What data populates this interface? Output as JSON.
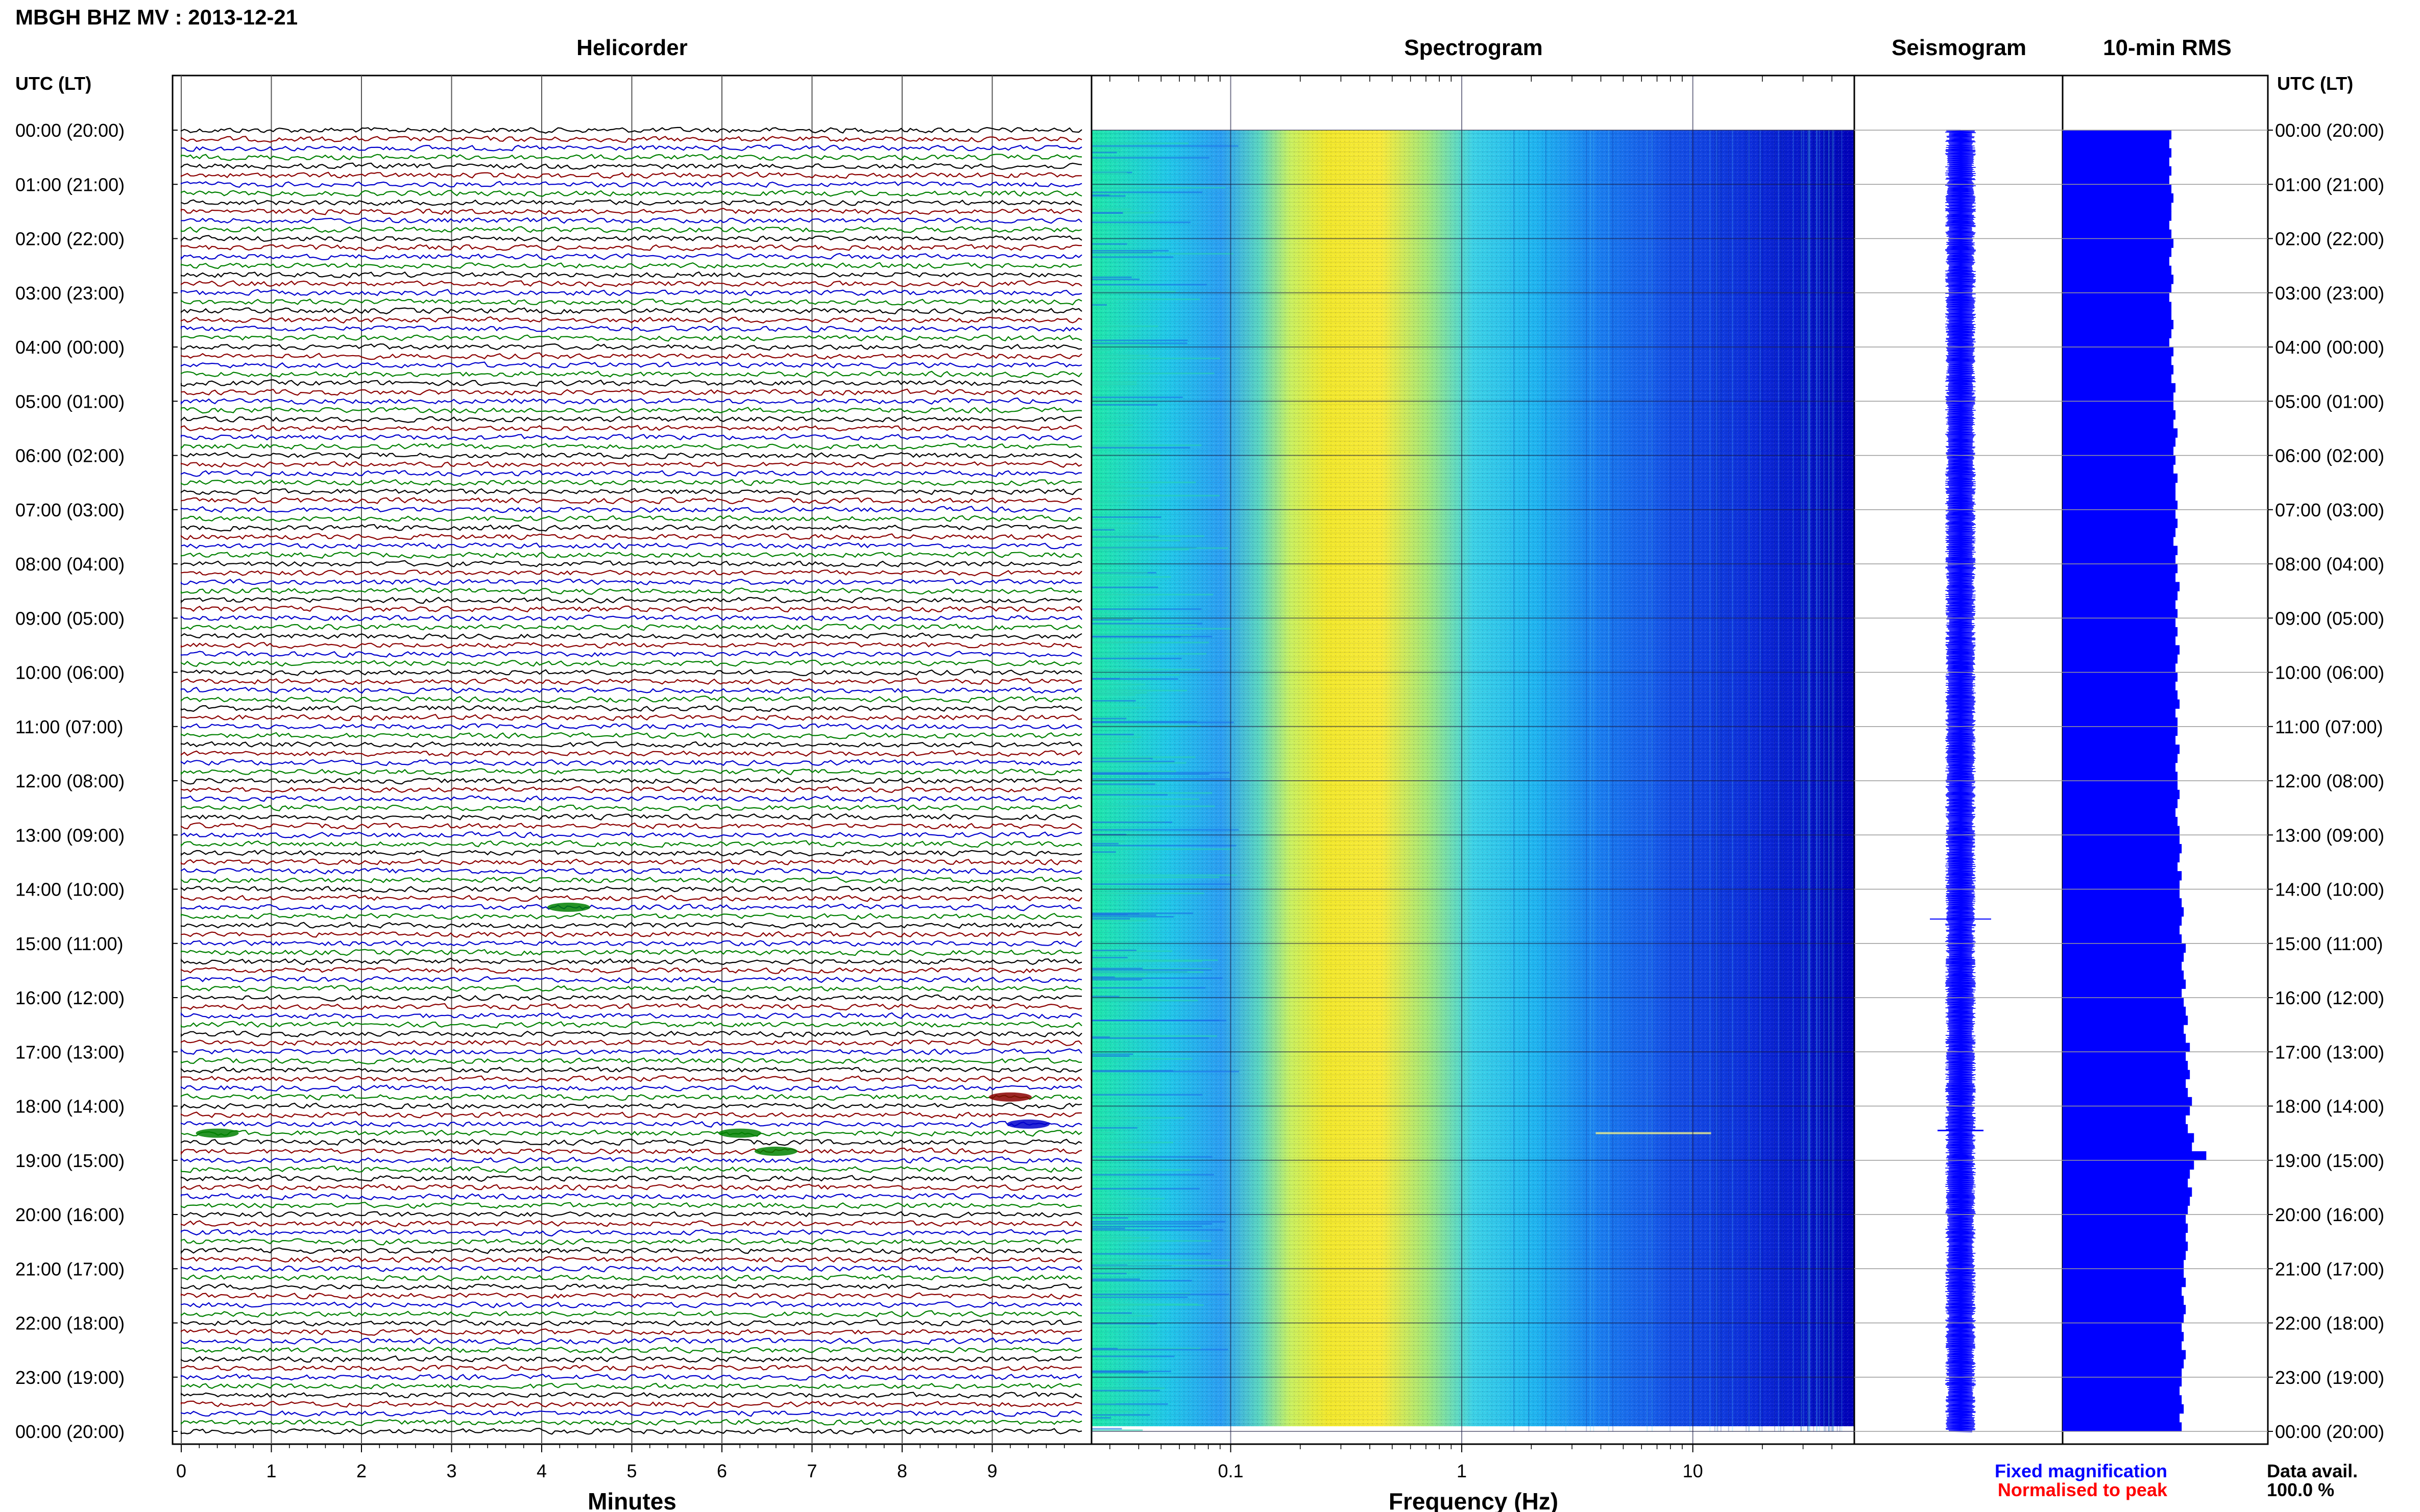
{
  "header": {
    "title": "MBGH BHZ MV : 2013-12-21",
    "utc_label_left": "UTC (LT)",
    "utc_label_right": "UTC (LT)"
  },
  "panels": {
    "helicorder": "Helicorder",
    "spectrogram": "Spectrogram",
    "seismogram": "Seismogram",
    "rms": "10-min RMS"
  },
  "axes": {
    "minutes_label": "Minutes",
    "frequency_label": "Frequency (Hz)",
    "minute_ticks": [
      "0",
      "1",
      "2",
      "3",
      "4",
      "5",
      "6",
      "7",
      "8",
      "9"
    ],
    "freq_ticks": [
      "0.1",
      "1",
      "10"
    ]
  },
  "time_labels": [
    "00:00 (20:00)",
    "01:00 (21:00)",
    "02:00 (22:00)",
    "03:00 (23:00)",
    "04:00 (00:00)",
    "05:00 (01:00)",
    "06:00 (02:00)",
    "07:00 (03:00)",
    "08:00 (04:00)",
    "09:00 (05:00)",
    "10:00 (06:00)",
    "11:00 (07:00)",
    "12:00 (08:00)",
    "13:00 (09:00)",
    "14:00 (10:00)",
    "15:00 (11:00)",
    "16:00 (12:00)",
    "17:00 (13:00)",
    "18:00 (14:00)",
    "19:00 (15:00)",
    "20:00 (16:00)",
    "21:00 (17:00)",
    "22:00 (18:00)",
    "23:00 (19:00)",
    "00:00 (20:00)"
  ],
  "legend": {
    "fixed": "Fixed magnification",
    "normalised": "Normalised to peak",
    "fixed_color": "#0000ff",
    "normalised_color": "#ff0000"
  },
  "data_availability": {
    "label": "Data avail.",
    "value": "100.0 %"
  },
  "chart_data": {
    "type": "heatmap",
    "station": "MBGH",
    "channel": "BHZ",
    "network": "MV",
    "date": "2013-12-21",
    "helicorder": {
      "x_range_minutes": [
        0,
        10
      ],
      "traces_per_hour": 6,
      "trace_colors": [
        "#000000",
        "#8b0000",
        "#0000cd",
        "#008000"
      ],
      "events": [
        {
          "time": "14:20",
          "minute": 4.3,
          "color": "#008000"
        },
        {
          "time": "17:50",
          "minute": 9.2,
          "color": "#8b0000"
        },
        {
          "time": "18:20",
          "minute": 9.4,
          "color": "#0000cd"
        },
        {
          "time": "18:30",
          "minute": 0.4,
          "color": "#008000"
        },
        {
          "time": "18:30",
          "minute": 6.2,
          "color": "#008000"
        },
        {
          "time": "18:50",
          "minute": 6.6,
          "color": "#008000"
        }
      ]
    },
    "spectrogram": {
      "x_scale": "log",
      "x_range_hz": [
        0.025,
        50
      ],
      "colormap": "jet",
      "peak_band_hz": [
        0.15,
        0.6
      ]
    },
    "rms_10min": {
      "bins_per_hour": 6,
      "color": "#0000ff",
      "relative_values": [
        0.53,
        0.52,
        0.53,
        0.52,
        0.53,
        0.52,
        0.53,
        0.54,
        0.53,
        0.53,
        0.52,
        0.53,
        0.54,
        0.53,
        0.52,
        0.53,
        0.54,
        0.53,
        0.52,
        0.53,
        0.53,
        0.54,
        0.53,
        0.52,
        0.54,
        0.53,
        0.54,
        0.53,
        0.55,
        0.54,
        0.54,
        0.55,
        0.54,
        0.56,
        0.55,
        0.54,
        0.55,
        0.54,
        0.56,
        0.55,
        0.55,
        0.56,
        0.55,
        0.56,
        0.55,
        0.54,
        0.56,
        0.55,
        0.56,
        0.55,
        0.57,
        0.56,
        0.55,
        0.56,
        0.55,
        0.56,
        0.55,
        0.57,
        0.56,
        0.55,
        0.56,
        0.55,
        0.56,
        0.57,
        0.55,
        0.56,
        0.56,
        0.55,
        0.57,
        0.56,
        0.55,
        0.56,
        0.56,
        0.57,
        0.56,
        0.55,
        0.56,
        0.57,
        0.57,
        0.58,
        0.57,
        0.56,
        0.58,
        0.57,
        0.57,
        0.58,
        0.59,
        0.58,
        0.57,
        0.58,
        0.6,
        0.59,
        0.58,
        0.59,
        0.6,
        0.58,
        0.59,
        0.6,
        0.61,
        0.59,
        0.6,
        0.62,
        0.6,
        0.61,
        0.62,
        0.6,
        0.61,
        0.63,
        0.62,
        0.6,
        0.61,
        0.64,
        0.63,
        0.7,
        0.64,
        0.62,
        0.61,
        0.63,
        0.62,
        0.61,
        0.6,
        0.61,
        0.6,
        0.61,
        0.6,
        0.59,
        0.59,
        0.6,
        0.58,
        0.59,
        0.6,
        0.59,
        0.58,
        0.59,
        0.58,
        0.6,
        0.59,
        0.58,
        0.58,
        0.57,
        0.58,
        0.59,
        0.57,
        0.58
      ]
    }
  }
}
